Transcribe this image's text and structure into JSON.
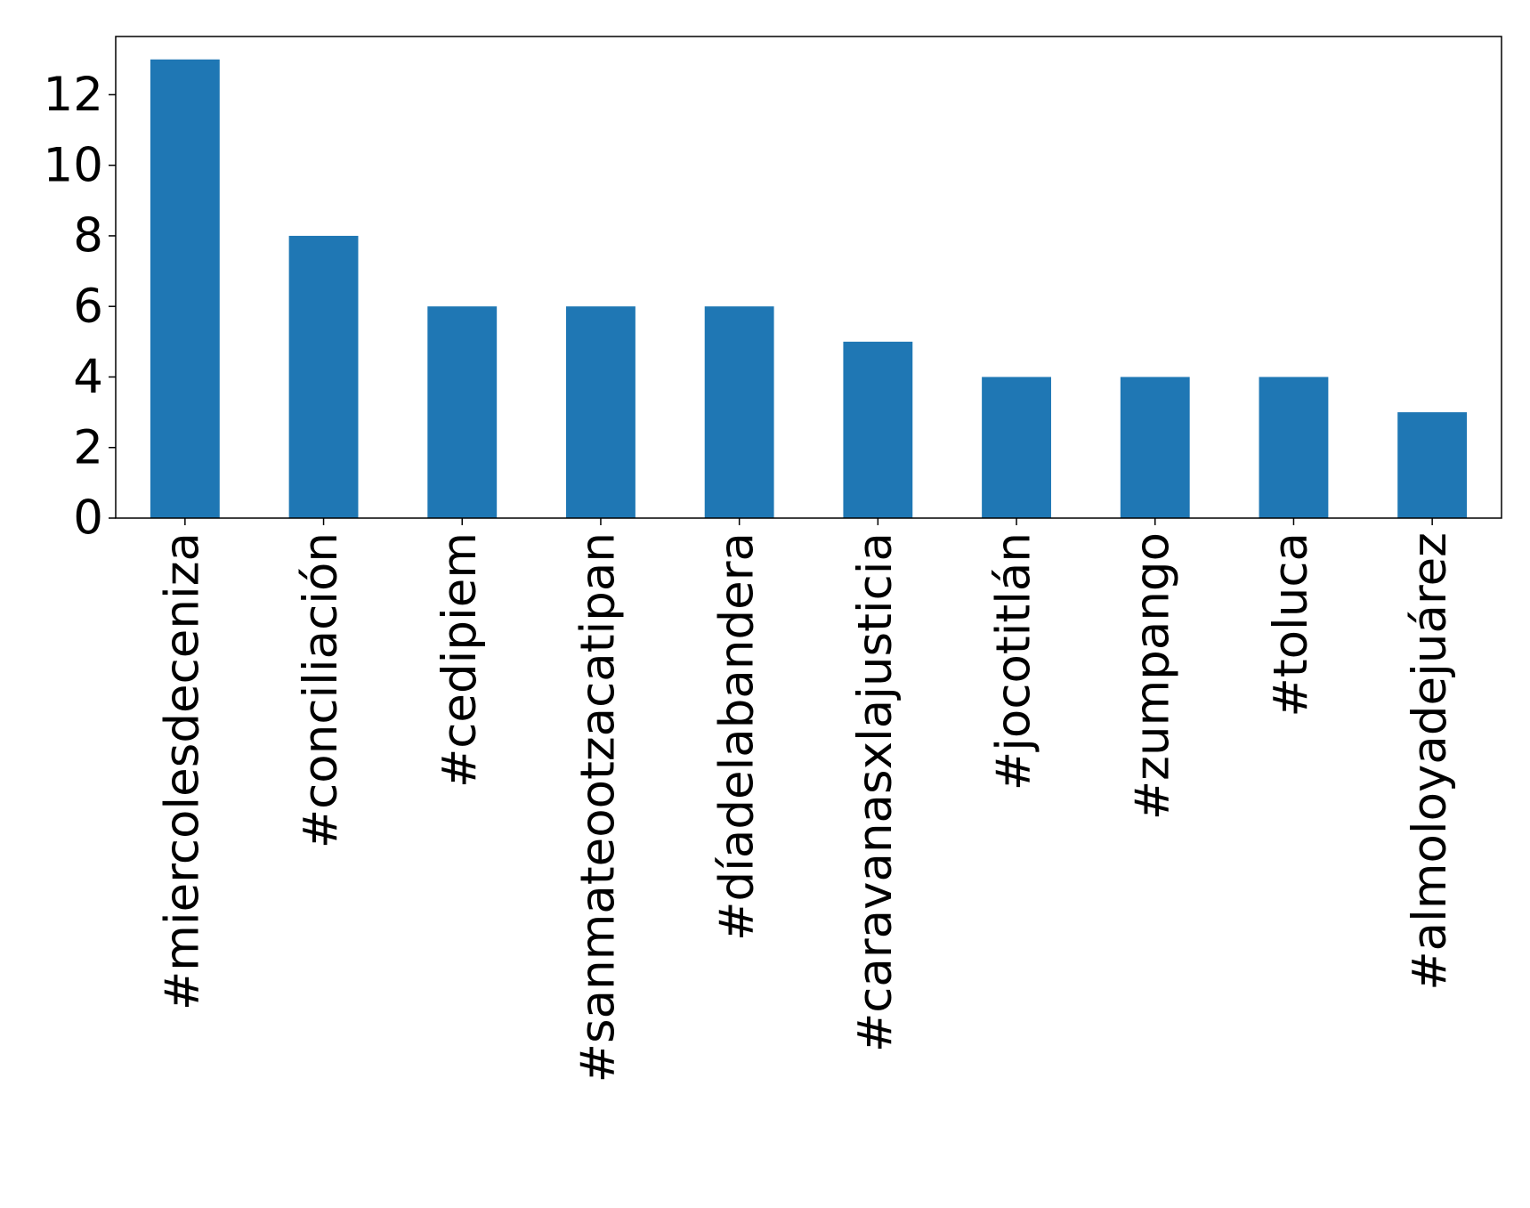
{
  "chart_data": {
    "type": "bar",
    "categories": [
      "#miercolesdeceniza",
      "#conciliación",
      "#cedipiem",
      "#sanmateootzacatipan",
      "#díadelabandera",
      "#caravanasxlajusticia",
      "#jocotitlán",
      "#zumpango",
      "#toluca",
      "#almoloyadejuárez"
    ],
    "values": [
      13,
      8,
      6,
      6,
      6,
      5,
      4,
      4,
      4,
      3
    ],
    "color": "#1f77b4",
    "ylim": [
      0,
      13.65
    ],
    "yticks": [
      0,
      2,
      4,
      6,
      8,
      10,
      12
    ],
    "grid": false
  }
}
